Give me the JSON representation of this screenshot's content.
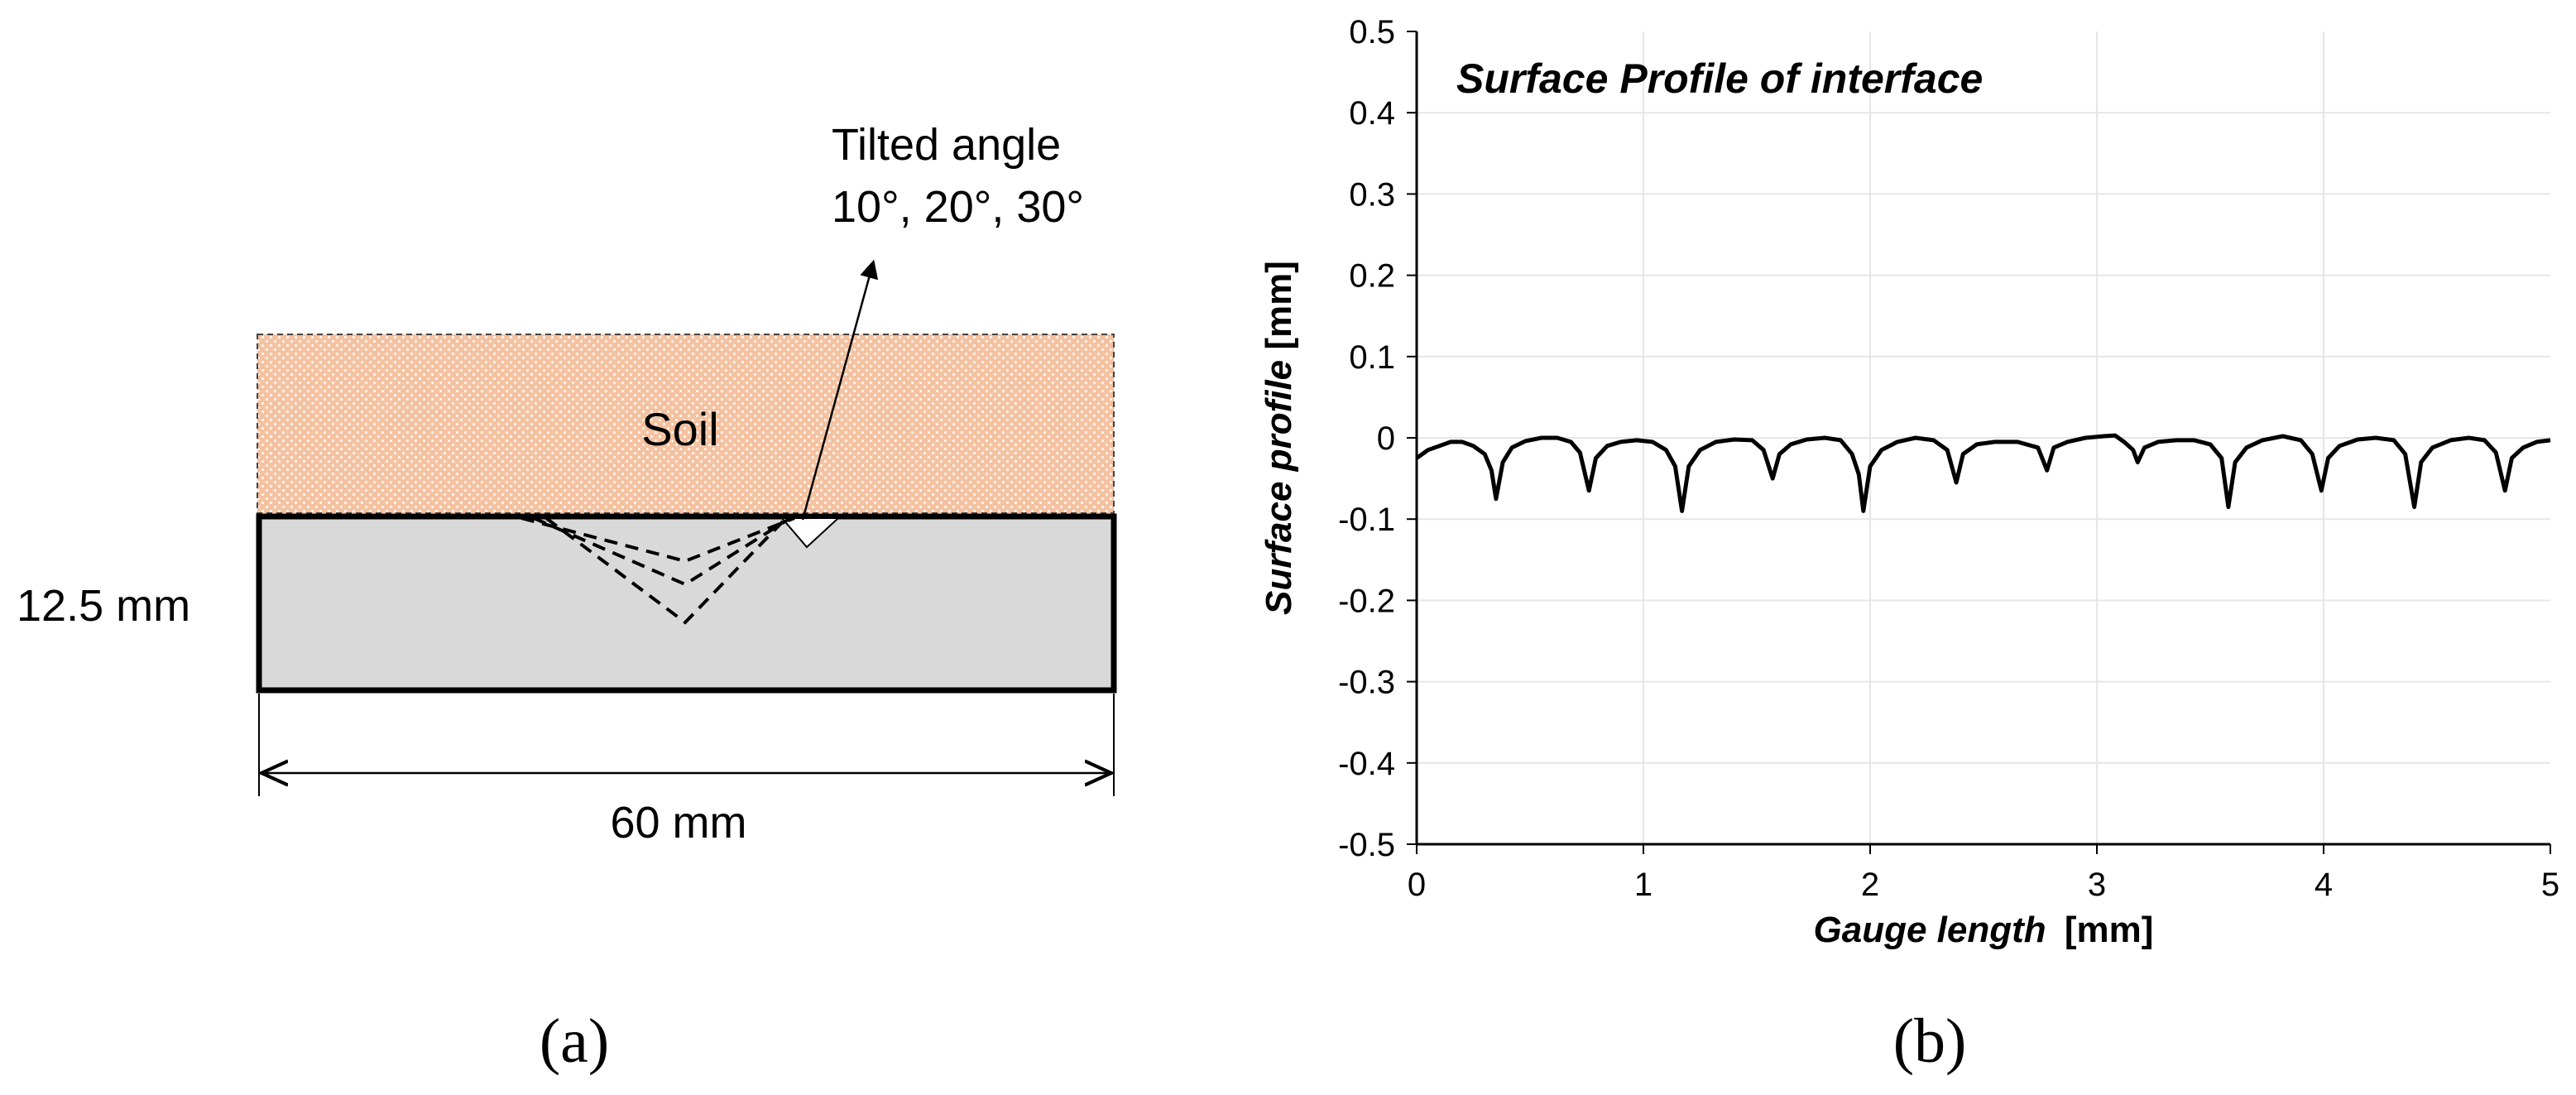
{
  "panel_a": {
    "label": "(a)",
    "layer_label": "Soil",
    "thickness_label": "12.5 mm",
    "width_label": "60 mm",
    "annotation_line1": "Tilted angle",
    "annotation_line2": "10°, 20°, 30°",
    "colors": {
      "soil": "#f4c2a1",
      "block": "#d9d9d9"
    }
  },
  "panel_b": {
    "label": "(b)"
  },
  "chart_data": {
    "type": "line",
    "title": "Surface Profile of interface",
    "xlabel": "Gauge length",
    "xlabel_unit": "[mm]",
    "ylabel": "Surface profile",
    "ylabel_unit": "[mm]",
    "xlim": [
      0,
      5
    ],
    "ylim": [
      -0.5,
      0.5
    ],
    "xticks": [
      "0",
      "1",
      "2",
      "3",
      "4",
      "5"
    ],
    "yticks": [
      "0.5",
      "0.4",
      "0.3",
      "0.2",
      "0.1",
      "0",
      "-0.1",
      "-0.2",
      "-0.3",
      "-0.4",
      "-0.5"
    ],
    "grid": true,
    "series": [
      {
        "name": "Surface profile",
        "color": "#000000",
        "dips": [
          {
            "x": 0.35,
            "y": -0.075
          },
          {
            "x": 0.76,
            "y": -0.065
          },
          {
            "x": 1.17,
            "y": -0.09
          },
          {
            "x": 1.57,
            "y": -0.05
          },
          {
            "x": 1.97,
            "y": -0.09
          },
          {
            "x": 2.38,
            "y": -0.055
          },
          {
            "x": 2.78,
            "y": -0.04
          },
          {
            "x": 3.18,
            "y": -0.03
          },
          {
            "x": 3.58,
            "y": -0.085
          },
          {
            "x": 3.99,
            "y": -0.065
          },
          {
            "x": 4.4,
            "y": -0.085
          },
          {
            "x": 4.8,
            "y": -0.065
          }
        ],
        "points": [
          [
            0.0,
            -0.025
          ],
          [
            0.05,
            -0.015
          ],
          [
            0.1,
            -0.01
          ],
          [
            0.15,
            -0.005
          ],
          [
            0.2,
            -0.005
          ],
          [
            0.25,
            -0.01
          ],
          [
            0.3,
            -0.02
          ],
          [
            0.33,
            -0.04
          ],
          [
            0.35,
            -0.075
          ],
          [
            0.38,
            -0.03
          ],
          [
            0.42,
            -0.012
          ],
          [
            0.48,
            -0.004
          ],
          [
            0.55,
            0.0
          ],
          [
            0.62,
            0.0
          ],
          [
            0.68,
            -0.005
          ],
          [
            0.72,
            -0.018
          ],
          [
            0.76,
            -0.065
          ],
          [
            0.79,
            -0.025
          ],
          [
            0.84,
            -0.01
          ],
          [
            0.9,
            -0.005
          ],
          [
            0.97,
            -0.003
          ],
          [
            1.04,
            -0.005
          ],
          [
            1.1,
            -0.015
          ],
          [
            1.14,
            -0.035
          ],
          [
            1.17,
            -0.09
          ],
          [
            1.2,
            -0.035
          ],
          [
            1.25,
            -0.015
          ],
          [
            1.32,
            -0.005
          ],
          [
            1.4,
            -0.002
          ],
          [
            1.48,
            -0.003
          ],
          [
            1.53,
            -0.015
          ],
          [
            1.57,
            -0.05
          ],
          [
            1.6,
            -0.02
          ],
          [
            1.65,
            -0.008
          ],
          [
            1.72,
            -0.002
          ],
          [
            1.8,
            0.0
          ],
          [
            1.87,
            -0.003
          ],
          [
            1.92,
            -0.02
          ],
          [
            1.95,
            -0.045
          ],
          [
            1.97,
            -0.09
          ],
          [
            2.0,
            -0.035
          ],
          [
            2.05,
            -0.015
          ],
          [
            2.12,
            -0.005
          ],
          [
            2.2,
            0.0
          ],
          [
            2.28,
            -0.003
          ],
          [
            2.34,
            -0.015
          ],
          [
            2.38,
            -0.055
          ],
          [
            2.41,
            -0.02
          ],
          [
            2.47,
            -0.008
          ],
          [
            2.55,
            -0.005
          ],
          [
            2.65,
            -0.005
          ],
          [
            2.74,
            -0.012
          ],
          [
            2.78,
            -0.04
          ],
          [
            2.81,
            -0.012
          ],
          [
            2.87,
            -0.005
          ],
          [
            2.95,
            0.0
          ],
          [
            3.03,
            0.002
          ],
          [
            3.08,
            0.003
          ],
          [
            3.12,
            -0.005
          ],
          [
            3.16,
            -0.015
          ],
          [
            3.18,
            -0.03
          ],
          [
            3.21,
            -0.012
          ],
          [
            3.27,
            -0.005
          ],
          [
            3.35,
            -0.003
          ],
          [
            3.43,
            -0.003
          ],
          [
            3.5,
            -0.008
          ],
          [
            3.55,
            -0.025
          ],
          [
            3.58,
            -0.085
          ],
          [
            3.61,
            -0.03
          ],
          [
            3.66,
            -0.012
          ],
          [
            3.73,
            -0.003
          ],
          [
            3.82,
            0.002
          ],
          [
            3.9,
            -0.003
          ],
          [
            3.95,
            -0.02
          ],
          [
            3.99,
            -0.065
          ],
          [
            4.02,
            -0.025
          ],
          [
            4.07,
            -0.01
          ],
          [
            4.15,
            -0.002
          ],
          [
            4.23,
            0.0
          ],
          [
            4.31,
            -0.003
          ],
          [
            4.36,
            -0.02
          ],
          [
            4.4,
            -0.085
          ],
          [
            4.43,
            -0.03
          ],
          [
            4.48,
            -0.012
          ],
          [
            4.56,
            -0.003
          ],
          [
            4.64,
            0.0
          ],
          [
            4.71,
            -0.003
          ],
          [
            4.76,
            -0.018
          ],
          [
            4.8,
            -0.065
          ],
          [
            4.83,
            -0.025
          ],
          [
            4.88,
            -0.012
          ],
          [
            4.94,
            -0.005
          ],
          [
            5.0,
            -0.003
          ]
        ]
      }
    ]
  }
}
